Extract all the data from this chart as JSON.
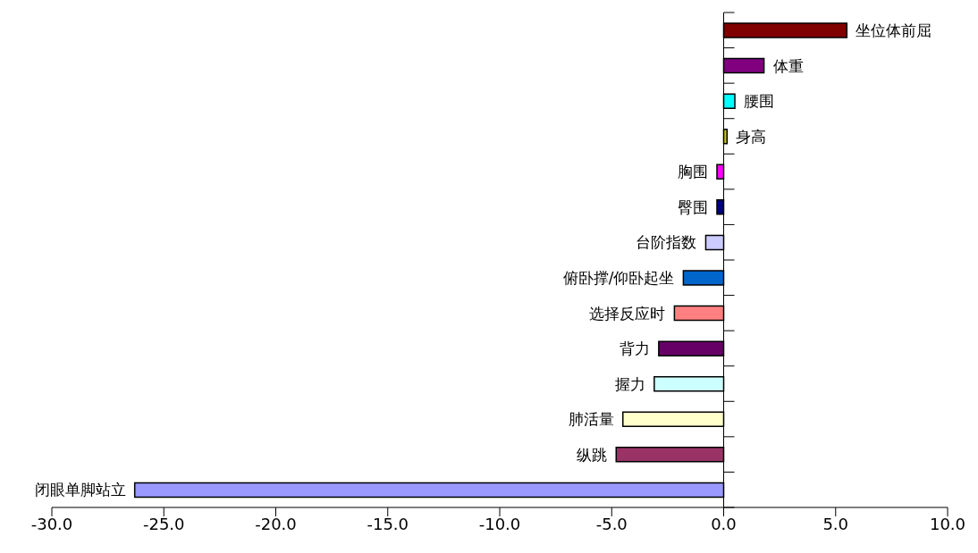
{
  "chart_data": {
    "type": "bar",
    "orientation": "horizontal",
    "categories": [
      "坐位体前屈",
      "体重",
      "腰围",
      "身高",
      "胸围",
      "臀围",
      "台阶指数",
      "俯卧撑/仰卧起坐",
      "选择反应时",
      "背力",
      "握力",
      "肺活量",
      "纵跳",
      "闭眼单脚站立"
    ],
    "values": [
      5.5,
      1.8,
      0.5,
      0.15,
      -0.3,
      -0.3,
      -0.8,
      -1.8,
      -2.2,
      -2.9,
      -3.1,
      -4.5,
      -4.8,
      -26.3
    ],
    "colors": [
      "#800000",
      "#800080",
      "#00ffff",
      "#cccc00",
      "#ff00ff",
      "#000080",
      "#ccccff",
      "#0066cc",
      "#ff8080",
      "#660066",
      "#ccffff",
      "#ffffcc",
      "#993366",
      "#9999ff"
    ],
    "xlim": [
      -30,
      10
    ],
    "xticks": [
      {
        "value": -30,
        "label": "-30.0"
      },
      {
        "value": -25,
        "label": "-25.0"
      },
      {
        "value": -20,
        "label": "-20.0"
      },
      {
        "value": -15,
        "label": "-15.0"
      },
      {
        "value": -10,
        "label": "-10.0"
      },
      {
        "value": -5,
        "label": "-5.0"
      },
      {
        "value": 0,
        "label": "0.0"
      },
      {
        "value": 5,
        "label": "5.0"
      },
      {
        "value": 10,
        "label": "10.0"
      }
    ],
    "line_style": "solid"
  }
}
